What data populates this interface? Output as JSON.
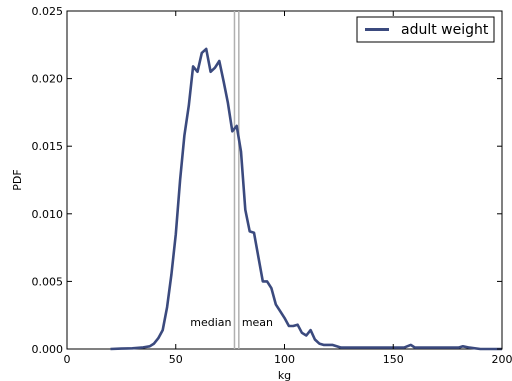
{
  "chart_data": {
    "type": "line",
    "title": "",
    "xlabel": "kg",
    "ylabel": "PDF",
    "xlim": [
      0,
      200
    ],
    "ylim": [
      0,
      0.025
    ],
    "xticks": [
      0,
      50,
      100,
      150,
      200
    ],
    "yticks": [
      0.0,
      0.005,
      0.01,
      0.015,
      0.02,
      0.025
    ],
    "ytick_labels": [
      "0.000",
      "0.005",
      "0.010",
      "0.015",
      "0.020",
      "0.025"
    ],
    "grid": false,
    "legend_position": "top-right",
    "series": [
      {
        "name": "adult weight",
        "color": "#3b4a7e",
        "x": [
          20,
          25,
          30,
          35,
          38,
          40,
          42,
          44,
          46,
          48,
          50,
          52,
          54,
          56,
          58,
          60,
          62,
          64,
          66,
          68,
          70,
          72,
          74,
          76,
          78,
          80,
          82,
          84,
          86,
          88,
          90,
          92,
          94,
          96,
          98,
          100,
          102,
          104,
          106,
          108,
          110,
          112,
          114,
          116,
          118,
          120,
          122,
          124,
          126,
          128,
          130,
          132,
          134,
          136,
          138,
          140,
          145,
          150,
          155,
          158,
          160,
          165,
          170,
          175,
          180,
          182,
          185,
          190,
          195,
          200
        ],
        "y": [
          0.0,
          3e-05,
          5e-05,
          0.00012,
          0.0002,
          0.0004,
          0.0008,
          0.0014,
          0.0031,
          0.0055,
          0.0085,
          0.0125,
          0.0158,
          0.018,
          0.0209,
          0.0205,
          0.0219,
          0.0222,
          0.0205,
          0.0208,
          0.0213,
          0.0198,
          0.0182,
          0.0161,
          0.0165,
          0.0146,
          0.0103,
          0.0087,
          0.0086,
          0.0068,
          0.005,
          0.005,
          0.0045,
          0.0033,
          0.0028,
          0.0023,
          0.0017,
          0.0017,
          0.0018,
          0.0012,
          0.001,
          0.0014,
          0.0007,
          0.0004,
          0.0003,
          0.0003,
          0.0003,
          0.0002,
          0.0001,
          0.0001,
          0.0001,
          0.0001,
          0.0001,
          0.0001,
          0.0001,
          0.0001,
          0.0001,
          0.0001,
          0.0001,
          0.0003,
          0.0001,
          0.0001,
          0.0001,
          0.0001,
          0.0001,
          0.0002,
          0.0001,
          0.0,
          0.0,
          0.0
        ]
      }
    ],
    "vlines": [
      {
        "label": "median",
        "x": 77,
        "color": "#b0b0b0"
      },
      {
        "label": "mean",
        "x": 79,
        "color": "#b0b0b0"
      }
    ],
    "annotation_y": 0.002
  }
}
